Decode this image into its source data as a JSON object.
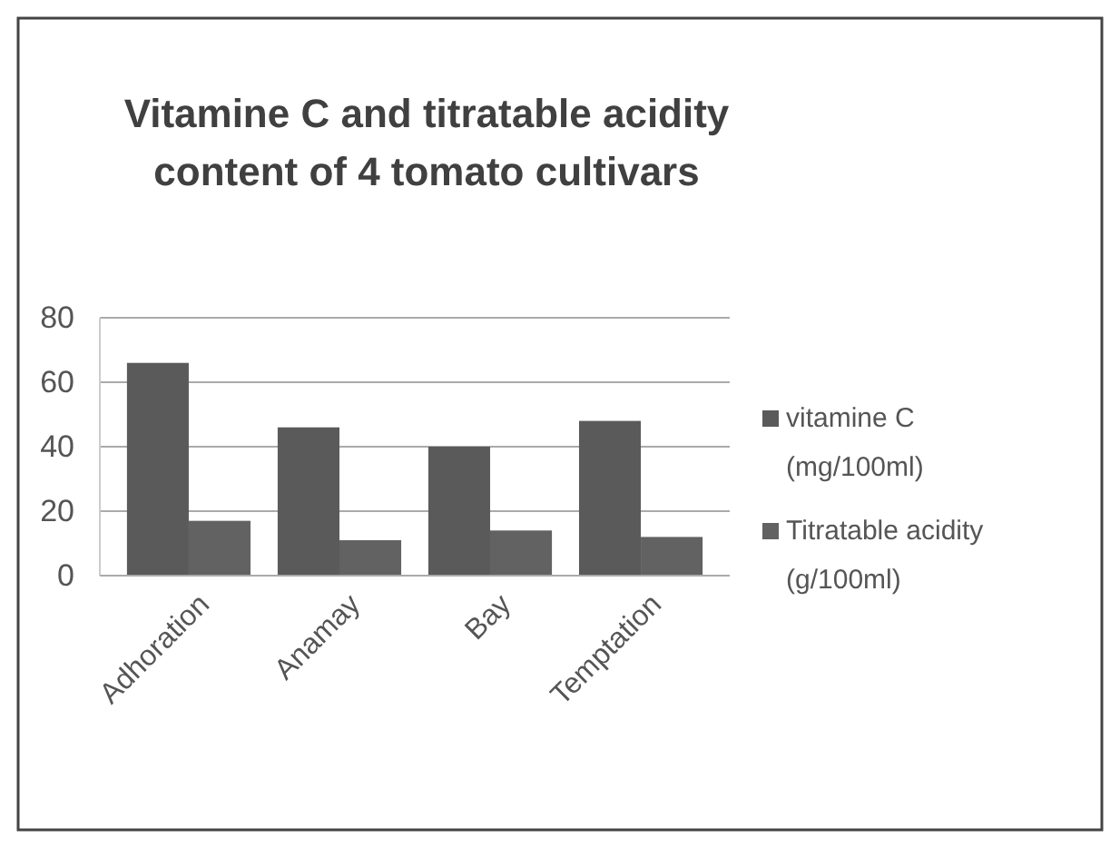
{
  "chart_data": {
    "type": "bar",
    "title": "Vitamine C and titratable acidity content of 4 tomato cultivars",
    "categories": [
      "Adhoration",
      "Anamay",
      "Bay",
      "Temptation"
    ],
    "series": [
      {
        "name": "vitamine C (mg/100ml)",
        "color": "#5a5a5a",
        "values": [
          66,
          46,
          40,
          48
        ]
      },
      {
        "name": "Titratable acidity (g/100ml)",
        "color": "#626262",
        "values": [
          17,
          11,
          14,
          12
        ]
      }
    ],
    "ylim": [
      0,
      80
    ],
    "yticks": [
      0,
      20,
      40,
      60,
      80
    ],
    "grid": "y",
    "legend": "right"
  }
}
